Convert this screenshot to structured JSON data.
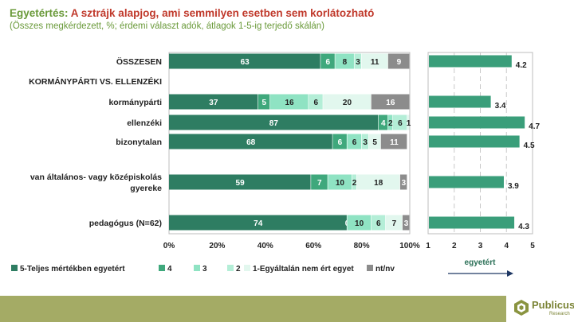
{
  "title": {
    "lead": "Egyetértés: ",
    "main": "A sztrájk alapjog, ami semmilyen esetben sem korlátozható"
  },
  "subtitle": "(Összes megkérdezett, %; érdemi választ adók, átlagok 1-5-ig terjedő skálán)",
  "chart_data": [
    {
      "type": "bar",
      "orientation": "horizontal",
      "stacked": true,
      "categories": [
        "ÖSSZESEN",
        "KORMÁNYPÁRTI VS. ELLENZÉKI",
        "kormánypárti",
        "ellenzéki",
        "bizonytalan",
        "van általános- vagy középiskolás gyereke",
        "pedagógus (N=62)"
      ],
      "series": [
        {
          "name": "5-Teljes mértékben egyetért",
          "color": "#2e7d62",
          "values": [
            63,
            null,
            37,
            87,
            68,
            59,
            74
          ],
          "labels": [
            "63",
            "",
            "37",
            "87",
            "68",
            "59",
            "74"
          ]
        },
        {
          "name": "4",
          "color": "#3fa87c",
          "values": [
            6,
            null,
            5,
            4,
            6,
            7,
            0
          ],
          "labels": [
            "6",
            "",
            "5",
            "4",
            "6",
            "7",
            "0"
          ]
        },
        {
          "name": "3",
          "color": "#8fe3c3",
          "values": [
            8,
            null,
            16,
            2,
            6,
            10,
            10
          ],
          "labels": [
            "8",
            "",
            "16",
            "2",
            "6",
            "10",
            "10"
          ]
        },
        {
          "name": "2",
          "color": "#b4eed7",
          "values": [
            3,
            null,
            6,
            6,
            3,
            2,
            6
          ],
          "labels": [
            "3",
            "",
            "6",
            "6",
            "3",
            "2",
            "6"
          ]
        },
        {
          "name": "1-Egyáltalán nem ért egyet",
          "color": "#e2f7ee",
          "values": [
            11,
            null,
            20,
            1,
            5,
            18,
            7
          ],
          "labels": [
            "11",
            "",
            "20",
            "1",
            "5",
            "18",
            "7"
          ]
        },
        {
          "name": "nt/nv",
          "color": "#8c8c8c",
          "values": [
            9,
            null,
            16,
            0,
            11,
            3,
            3
          ],
          "labels": [
            "9",
            "",
            "16",
            "",
            "11",
            "3",
            "3"
          ]
        }
      ],
      "xlim": [
        0,
        100
      ],
      "xticks": [
        "0%",
        "20%",
        "40%",
        "60%",
        "80%",
        "100%"
      ],
      "legend_position": "bottom"
    },
    {
      "type": "bar",
      "orientation": "horizontal",
      "categories": [
        "ÖSSZESEN",
        "KORMÁNYPÁRTI VS. ELLENZÉKI",
        "kormánypárti",
        "ellenzéki",
        "bizonytalan",
        "van általános- vagy középiskolás gyereke",
        "pedagógus (N=62)"
      ],
      "values": [
        4.2,
        null,
        3.4,
        4.7,
        4.5,
        3.9,
        4.3
      ],
      "labels": [
        "4.2",
        "",
        "3.4",
        "4.7",
        "4.5",
        "3.9",
        "4.3"
      ],
      "color": "#3a9e7a",
      "xlim": [
        1,
        5
      ],
      "xticks": [
        "1",
        "2",
        "3",
        "4",
        "5"
      ],
      "xlabel": "egyetért",
      "grid": "vertical dashed"
    }
  ],
  "logo": {
    "name": "Publicus",
    "sub": "Research",
    "icon": "publicus-logo-icon"
  }
}
